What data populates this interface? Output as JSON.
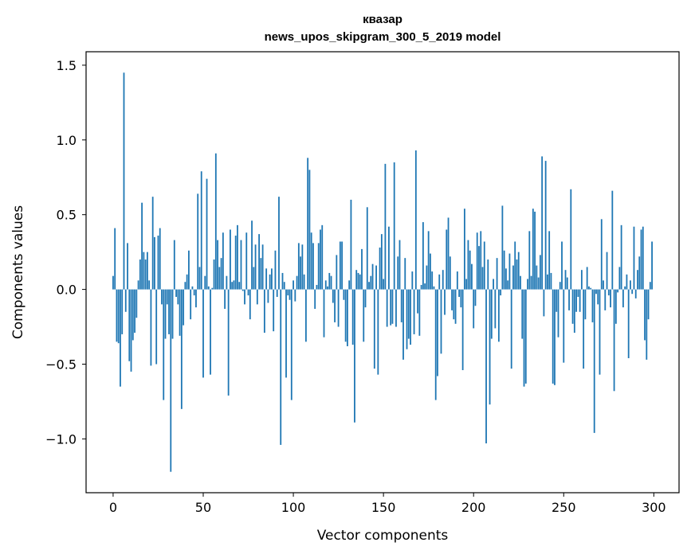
{
  "chart_data": {
    "type": "bar",
    "title": "квазар",
    "subtitle": "news_upos_skipgram_300_5_2019 model",
    "xlabel": "Vector components",
    "ylabel": "Components values",
    "xlim": [
      -15,
      314
    ],
    "ylim": [
      -1.36,
      1.59
    ],
    "xticks": [
      0,
      50,
      100,
      150,
      200,
      250,
      300
    ],
    "yticks": [
      -1.0,
      -0.5,
      0.0,
      0.5,
      1.0,
      1.5
    ],
    "xtick_labels": [
      "0",
      "50",
      "100",
      "150",
      "200",
      "250",
      "300"
    ],
    "ytick_labels": [
      "−1.0",
      "−0.5",
      "0.0",
      "0.5",
      "1.0",
      "1.5"
    ],
    "grid": false,
    "bar_color": "#1f77b4",
    "values": [
      0.09,
      0.41,
      -0.35,
      -0.36,
      -0.65,
      -0.3,
      1.45,
      -0.15,
      0.31,
      -0.48,
      -0.55,
      -0.34,
      -0.29,
      -0.19,
      0.06,
      0.2,
      0.58,
      0.25,
      0.2,
      0.25,
      0.06,
      -0.51,
      0.62,
      0.35,
      -0.5,
      0.36,
      0.41,
      -0.1,
      -0.74,
      -0.33,
      -0.1,
      -0.3,
      -1.22,
      -0.33,
      0.33,
      -0.05,
      -0.1,
      -0.31,
      -0.8,
      -0.24,
      0.05,
      0.1,
      0.26,
      -0.2,
      0.02,
      -0.04,
      -0.12,
      0.64,
      0.15,
      0.79,
      -0.59,
      0.09,
      0.74,
      0.02,
      -0.57,
      0.01,
      0.2,
      0.91,
      0.33,
      0.15,
      0.21,
      0.38,
      -0.13,
      0.09,
      -0.71,
      0.4,
      0.05,
      0.06,
      0.36,
      0.43,
      0.05,
      0.33,
      -0.01,
      -0.1,
      0.38,
      -0.04,
      -0.2,
      0.46,
      0.15,
      0.3,
      -0.1,
      0.37,
      0.21,
      0.3,
      -0.29,
      0.14,
      -0.09,
      0.1,
      0.14,
      -0.28,
      0.26,
      -0.05,
      0.62,
      -1.04,
      0.11,
      0.05,
      -0.59,
      -0.04,
      -0.07,
      -0.74,
      0.06,
      -0.08,
      0.09,
      0.31,
      0.22,
      0.3,
      0.1,
      -0.35,
      0.88,
      0.8,
      0.38,
      0.31,
      -0.13,
      0.03,
      0.31,
      0.4,
      0.43,
      -0.32,
      0.06,
      0.02,
      0.11,
      0.09,
      -0.09,
      -0.22,
      0.23,
      -0.25,
      0.32,
      0.32,
      -0.07,
      -0.35,
      -0.38,
      0.06,
      0.6,
      -0.37,
      -0.89,
      0.13,
      0.11,
      0.1,
      0.27,
      -0.35,
      -0.12,
      0.55,
      0.05,
      0.09,
      0.17,
      -0.53,
      0.16,
      -0.57,
      0.28,
      0.37,
      0.07,
      0.84,
      -0.25,
      0.42,
      -0.24,
      -0.23,
      0.85,
      -0.25,
      0.22,
      0.33,
      -0.22,
      -0.47,
      0.21,
      -0.4,
      -0.33,
      -0.37,
      0.12,
      -0.3,
      0.93,
      -0.16,
      -0.31,
      0.03,
      0.45,
      0.04,
      0.16,
      0.39,
      0.24,
      0.12,
      0.02,
      -0.74,
      -0.58,
      0.1,
      -0.43,
      0.13,
      -0.17,
      0.4,
      0.48,
      0.22,
      -0.14,
      -0.2,
      -0.23,
      0.12,
      -0.05,
      -0.12,
      -0.54,
      0.54,
      0.07,
      0.33,
      0.26,
      0.17,
      -0.26,
      -0.11,
      0.38,
      0.29,
      0.39,
      0.15,
      0.32,
      -1.03,
      0.2,
      -0.77,
      -0.33,
      0.07,
      -0.26,
      0.21,
      -0.35,
      -0.04,
      0.56,
      0.26,
      0.14,
      0.06,
      0.24,
      -0.53,
      0.16,
      0.32,
      0.2,
      0.25,
      0.09,
      -0.33,
      -0.65,
      -0.63,
      0.07,
      0.39,
      0.09,
      0.54,
      0.52,
      0.16,
      0.08,
      0.23,
      0.89,
      -0.18,
      0.86,
      0.1,
      0.39,
      0.11,
      -0.63,
      -0.64,
      -0.15,
      -0.32,
      0.05,
      0.32,
      -0.49,
      0.13,
      0.08,
      -0.14,
      0.67,
      -0.23,
      -0.29,
      -0.15,
      -0.05,
      -0.15,
      0.13,
      -0.53,
      -0.2,
      0.15,
      0.02,
      0.01,
      -0.22,
      -0.96,
      -0.03,
      -0.1,
      -0.57,
      0.47,
      0.06,
      -0.14,
      0.25,
      -0.04,
      -0.12,
      0.66,
      -0.68,
      -0.23,
      -0.02,
      0.15,
      0.43,
      -0.12,
      0.02,
      0.1,
      -0.46,
      0.06,
      -0.03,
      0.42,
      -0.06,
      0.13,
      0.22,
      0.4,
      0.42,
      -0.34,
      -0.47,
      -0.2,
      0.05,
      0.32
    ]
  }
}
